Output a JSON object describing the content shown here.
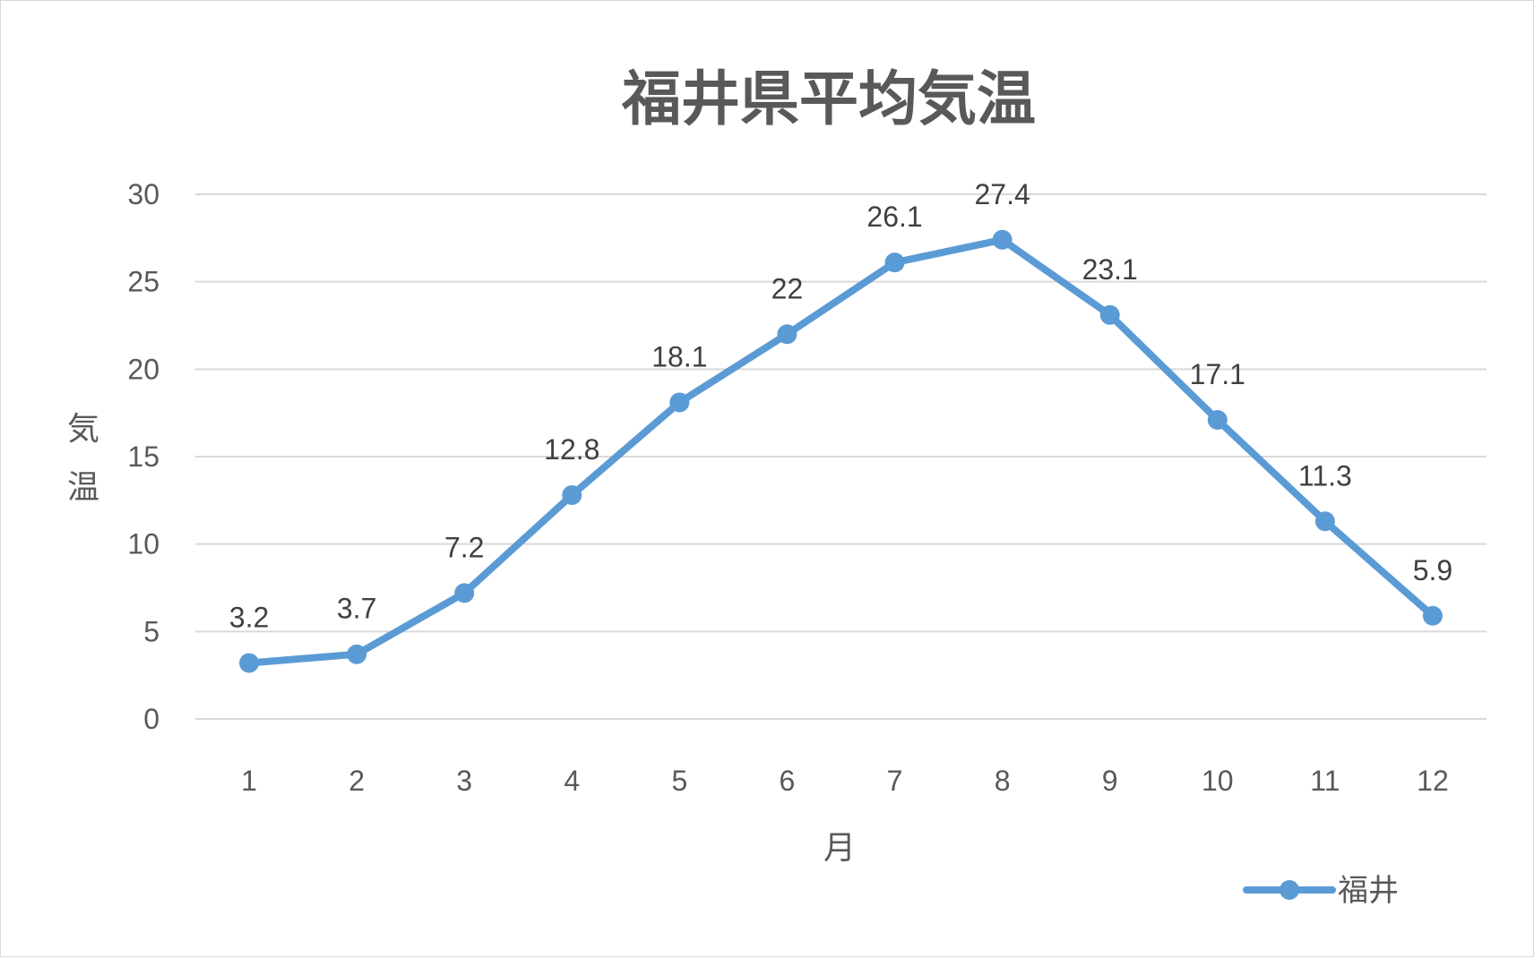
{
  "chart_data": {
    "type": "line",
    "title": "福井県平均気温",
    "xlabel": "月",
    "ylabel": "気温",
    "categories": [
      "1",
      "2",
      "3",
      "4",
      "5",
      "6",
      "7",
      "8",
      "9",
      "10",
      "11",
      "12"
    ],
    "series": [
      {
        "name": "福井",
        "values": [
          3.2,
          3.7,
          7.2,
          12.8,
          18.1,
          22,
          26.1,
          27.4,
          23.1,
          17.1,
          11.3,
          5.9
        ],
        "labels": [
          "3.2",
          "3.7",
          "7.2",
          "12.8",
          "18.1",
          "22",
          "26.1",
          "27.4",
          "23.1",
          "17.1",
          "11.3",
          "5.9"
        ],
        "color": "#5b9bd5"
      }
    ],
    "ylim": [
      0,
      30
    ],
    "yticks": [
      "0",
      "5",
      "10",
      "15",
      "20",
      "25",
      "30"
    ],
    "grid": true,
    "legend": "bottom-right",
    "colors": {
      "grid": "#d9d9d9",
      "text": "#595959",
      "label": "#404040"
    }
  }
}
